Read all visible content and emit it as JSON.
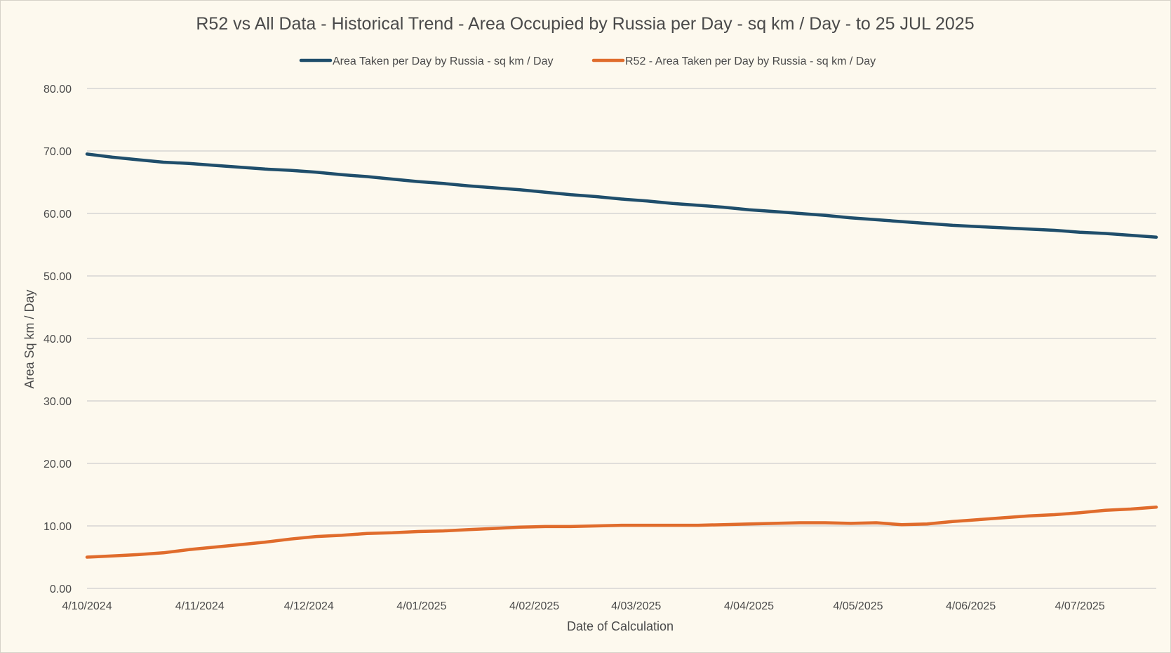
{
  "chart_data": {
    "type": "line",
    "title": "R52 vs All Data - Historical Trend - Area Occupied by Russia per Day - sq km / Day - to 25 JUL 2025",
    "xlabel": "Date of Calculation",
    "ylabel": "Area Sq km / Day",
    "x_tick_labels": [
      "4/10/2024",
      "4/11/2024",
      "4/12/2024",
      "4/01/2025",
      "4/02/2025",
      "4/03/2025",
      "4/04/2025",
      "4/05/2025",
      "4/06/2025",
      "4/07/2025"
    ],
    "x_ticks": [
      "2024-10-04",
      "2024-11-04",
      "2024-12-04",
      "2025-01-04",
      "2025-02-04",
      "2025-03-04",
      "2025-04-04",
      "2025-05-04",
      "2025-06-04",
      "2025-07-04"
    ],
    "xlim": [
      "2024-10-04",
      "2025-07-25"
    ],
    "y_tick_labels": [
      "0.00",
      "10.00",
      "20.00",
      "30.00",
      "40.00",
      "50.00",
      "60.00",
      "70.00",
      "80.00"
    ],
    "ylim": [
      0,
      80
    ],
    "grid": true,
    "legend_position": "top",
    "series": [
      {
        "name": "Area Taken per Day by Russia - sq km / Day",
        "color": "#1f4e6b",
        "points": [
          [
            "2024-10-04",
            69.5
          ],
          [
            "2024-10-11",
            69.0
          ],
          [
            "2024-10-18",
            68.6
          ],
          [
            "2024-10-25",
            68.2
          ],
          [
            "2024-11-01",
            68.0
          ],
          [
            "2024-11-08",
            67.7
          ],
          [
            "2024-11-15",
            67.4
          ],
          [
            "2024-11-22",
            67.1
          ],
          [
            "2024-11-29",
            66.9
          ],
          [
            "2024-12-06",
            66.6
          ],
          [
            "2024-12-13",
            66.2
          ],
          [
            "2024-12-20",
            65.9
          ],
          [
            "2024-12-27",
            65.5
          ],
          [
            "2025-01-03",
            65.1
          ],
          [
            "2025-01-10",
            64.8
          ],
          [
            "2025-01-17",
            64.4
          ],
          [
            "2025-01-24",
            64.1
          ],
          [
            "2025-01-31",
            63.8
          ],
          [
            "2025-02-07",
            63.4
          ],
          [
            "2025-02-14",
            63.0
          ],
          [
            "2025-02-21",
            62.7
          ],
          [
            "2025-02-28",
            62.3
          ],
          [
            "2025-03-07",
            62.0
          ],
          [
            "2025-03-14",
            61.6
          ],
          [
            "2025-03-21",
            61.3
          ],
          [
            "2025-03-28",
            61.0
          ],
          [
            "2025-04-04",
            60.6
          ],
          [
            "2025-04-11",
            60.3
          ],
          [
            "2025-04-18",
            60.0
          ],
          [
            "2025-04-25",
            59.7
          ],
          [
            "2025-05-02",
            59.3
          ],
          [
            "2025-05-09",
            59.0
          ],
          [
            "2025-05-16",
            58.7
          ],
          [
            "2025-05-23",
            58.4
          ],
          [
            "2025-05-30",
            58.1
          ],
          [
            "2025-06-06",
            57.9
          ],
          [
            "2025-06-13",
            57.7
          ],
          [
            "2025-06-20",
            57.5
          ],
          [
            "2025-06-27",
            57.3
          ],
          [
            "2025-07-04",
            57.0
          ],
          [
            "2025-07-11",
            56.8
          ],
          [
            "2025-07-18",
            56.5
          ],
          [
            "2025-07-25",
            56.2
          ]
        ]
      },
      {
        "name": "R52 - Area Taken per Day by Russia - sq km / Day",
        "color": "#e06c2c",
        "points": [
          [
            "2024-10-04",
            5.0
          ],
          [
            "2024-10-11",
            5.2
          ],
          [
            "2024-10-18",
            5.4
          ],
          [
            "2024-10-25",
            5.7
          ],
          [
            "2024-11-01",
            6.2
          ],
          [
            "2024-11-08",
            6.6
          ],
          [
            "2024-11-15",
            7.0
          ],
          [
            "2024-11-22",
            7.4
          ],
          [
            "2024-11-29",
            7.9
          ],
          [
            "2024-12-06",
            8.3
          ],
          [
            "2024-12-13",
            8.5
          ],
          [
            "2024-12-20",
            8.8
          ],
          [
            "2024-12-27",
            8.9
          ],
          [
            "2025-01-03",
            9.1
          ],
          [
            "2025-01-10",
            9.2
          ],
          [
            "2025-01-17",
            9.4
          ],
          [
            "2025-01-24",
            9.6
          ],
          [
            "2025-01-31",
            9.8
          ],
          [
            "2025-02-07",
            9.9
          ],
          [
            "2025-02-14",
            9.9
          ],
          [
            "2025-02-21",
            10.0
          ],
          [
            "2025-02-28",
            10.1
          ],
          [
            "2025-03-07",
            10.1
          ],
          [
            "2025-03-14",
            10.1
          ],
          [
            "2025-03-21",
            10.1
          ],
          [
            "2025-03-28",
            10.2
          ],
          [
            "2025-04-04",
            10.3
          ],
          [
            "2025-04-11",
            10.4
          ],
          [
            "2025-04-18",
            10.5
          ],
          [
            "2025-04-25",
            10.5
          ],
          [
            "2025-05-02",
            10.4
          ],
          [
            "2025-05-09",
            10.5
          ],
          [
            "2025-05-16",
            10.2
          ],
          [
            "2025-05-23",
            10.3
          ],
          [
            "2025-05-30",
            10.7
          ],
          [
            "2025-06-06",
            11.0
          ],
          [
            "2025-06-13",
            11.3
          ],
          [
            "2025-06-20",
            11.6
          ],
          [
            "2025-06-27",
            11.8
          ],
          [
            "2025-07-04",
            12.1
          ],
          [
            "2025-07-11",
            12.5
          ],
          [
            "2025-07-18",
            12.7
          ],
          [
            "2025-07-25",
            13.0
          ]
        ]
      }
    ]
  }
}
